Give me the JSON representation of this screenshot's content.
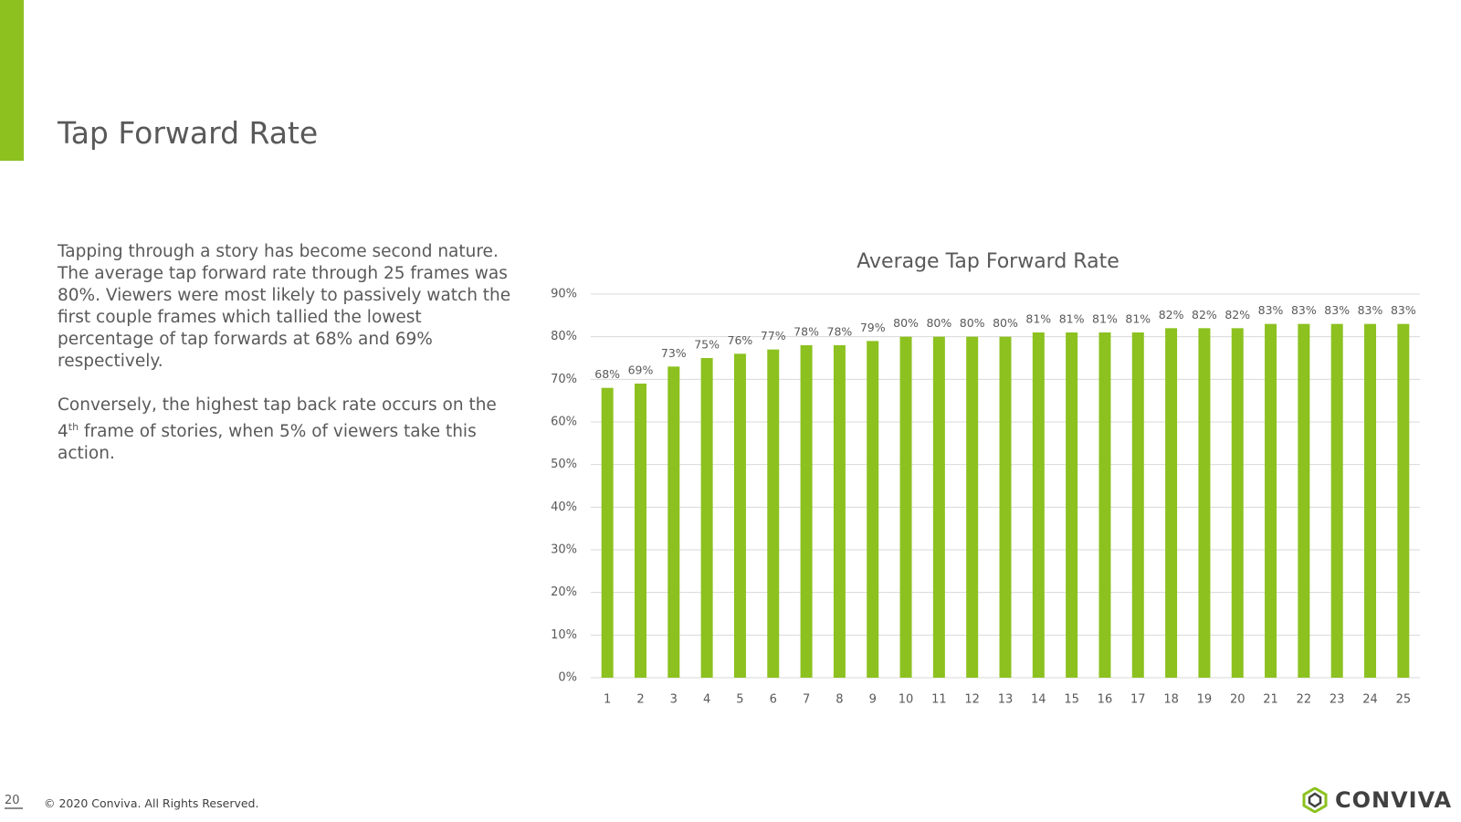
{
  "header": {
    "title": "Tap Forward Rate"
  },
  "body": {
    "paragraph1": "Tapping through a story has become second nature. The average tap forward rate through 25 frames was 80%. Viewers were most likely to passively watch the first couple frames which tallied the lowest percentage of tap forwards at 68% and 69% respectively.",
    "paragraph2": {
      "before": "Conversely, the highest tap back rate occurs on the 4",
      "sup": "th",
      "after": " frame of stories, when 5% of viewers take this action."
    }
  },
  "chart_data": {
    "type": "bar",
    "title": "Average Tap Forward Rate",
    "categories": [
      "1",
      "2",
      "3",
      "4",
      "5",
      "6",
      "7",
      "8",
      "9",
      "10",
      "11",
      "12",
      "13",
      "14",
      "15",
      "16",
      "17",
      "18",
      "19",
      "20",
      "21",
      "22",
      "23",
      "24",
      "25"
    ],
    "values": [
      68,
      69,
      73,
      75,
      76,
      77,
      78,
      78,
      79,
      80,
      80,
      80,
      80,
      81,
      81,
      81,
      81,
      82,
      82,
      82,
      83,
      83,
      83,
      83,
      83
    ],
    "value_labels": [
      "68%",
      "69%",
      "73%",
      "75%",
      "76%",
      "77%",
      "78%",
      "78%",
      "79%",
      "80%",
      "80%",
      "80%",
      "80%",
      "81%",
      "81%",
      "81%",
      "81%",
      "82%",
      "82%",
      "82%",
      "83%",
      "83%",
      "83%",
      "83%",
      "83%"
    ],
    "color": "#8cc11f",
    "ylim": [
      0,
      90
    ],
    "yticks": [
      {
        "value": 0,
        "label": "0%"
      },
      {
        "value": 10,
        "label": "10%"
      },
      {
        "value": 20,
        "label": "20%"
      },
      {
        "value": 30,
        "label": "30%"
      },
      {
        "value": 40,
        "label": "40%"
      },
      {
        "value": 50,
        "label": "50%"
      },
      {
        "value": 60,
        "label": "60%"
      },
      {
        "value": 70,
        "label": "70%"
      },
      {
        "value": 80,
        "label": "80%"
      },
      {
        "value": 90,
        "label": "90%"
      }
    ],
    "grid": true
  },
  "footer": {
    "page": "20",
    "copyright": "© 2020 Conviva. All Rights Reserved.",
    "logo": "CONVIVA"
  }
}
